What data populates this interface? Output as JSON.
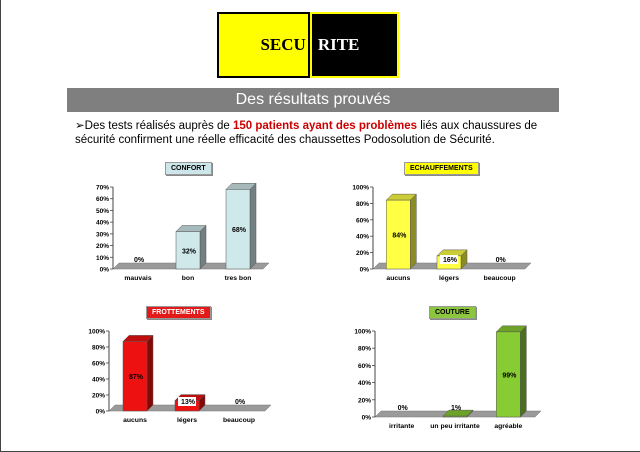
{
  "logo": {
    "left_text": "SECU",
    "right_text": "RITE"
  },
  "banner": {
    "title": "Des résultats prouvés"
  },
  "intro": {
    "bullet": "➢",
    "text_before": "Des tests réalisés auprès de ",
    "highlight": "150 patients ayant des problèmes",
    "text_after": " liés aux chaussures de sécurité confirment une réelle efficacité des chaussettes Podosolution de Sécurité."
  },
  "chart_data": [
    {
      "type": "bar",
      "title": "CONFORT",
      "categories": [
        "mauvais",
        "bon",
        "tres bon"
      ],
      "values": [
        0,
        32,
        68
      ],
      "ylim": [
        0,
        70
      ],
      "ticks": [
        0,
        10,
        20,
        30,
        40,
        50,
        60,
        70
      ],
      "color": "#cfe8ea",
      "title_bg": "#cde6ea",
      "title_color": "#000000"
    },
    {
      "type": "bar",
      "title": "ECHAUFFEMENTS",
      "categories": [
        "aucuns",
        "légers",
        "beaucoup"
      ],
      "values": [
        84,
        16,
        0
      ],
      "ylim": [
        0,
        100
      ],
      "ticks": [
        0,
        20,
        40,
        60,
        80,
        100
      ],
      "color": "#ffff44",
      "title_bg": "#ffff00",
      "title_color": "#000000"
    },
    {
      "type": "bar",
      "title": "FROTTEMENTS",
      "categories": [
        "aucuns",
        "légers",
        "beaucoup"
      ],
      "values": [
        87,
        13,
        0
      ],
      "ylim": [
        0,
        100
      ],
      "ticks": [
        0,
        20,
        40,
        60,
        80,
        100
      ],
      "color": "#ee1111",
      "title_bg": "#e21a1a",
      "title_color": "#ffffff"
    },
    {
      "type": "bar",
      "title": "COUTURE",
      "categories": [
        "irritante",
        "un peu irritante",
        "agréable"
      ],
      "values": [
        0,
        1,
        99
      ],
      "ylim": [
        0,
        100
      ],
      "ticks": [
        0,
        20,
        40,
        60,
        80,
        100
      ],
      "color": "#88cc33",
      "title_bg": "#8cc63f",
      "title_color": "#000000"
    }
  ]
}
